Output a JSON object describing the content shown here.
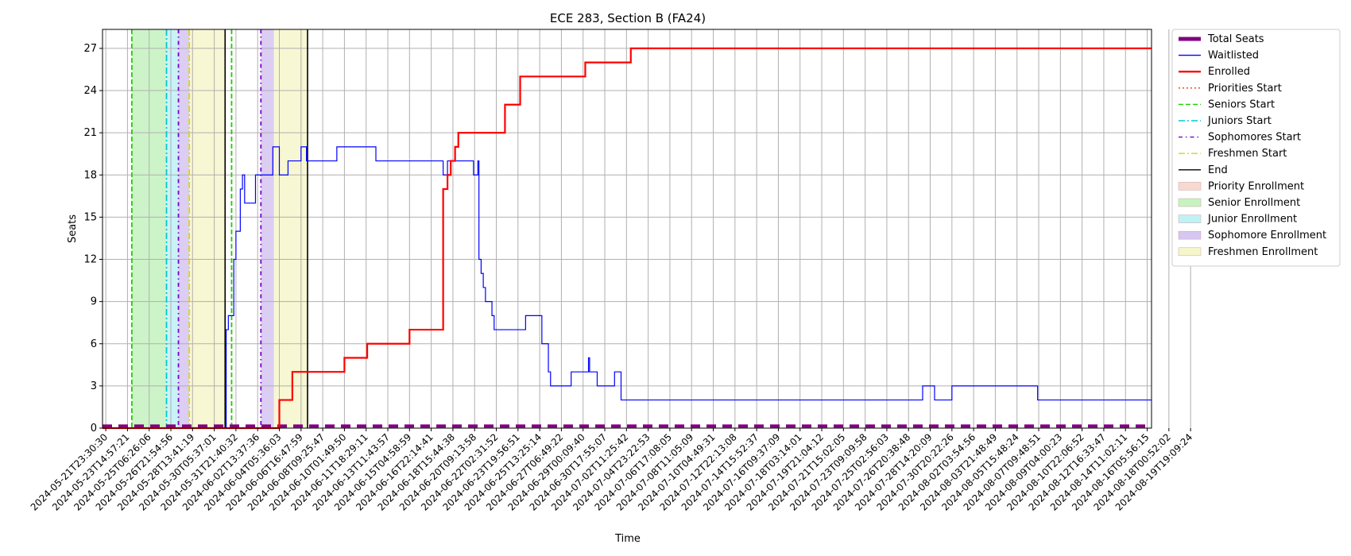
{
  "chart_data": {
    "type": "line",
    "title": "ECE 283, Section B (FA24)",
    "xlabel": "Time",
    "ylabel": "Seats",
    "ylim": [
      0,
      28.35
    ],
    "yticks": [
      0,
      3,
      6,
      9,
      12,
      15,
      18,
      21,
      24,
      27
    ],
    "xlim": [
      -0.15,
      48.2
    ],
    "grid": true,
    "legend_position": "outside-right",
    "x_tick_labels": [
      "2024-05-21T23:30:30",
      "2024-05-23T14:57:21",
      "2024-05-25T06:26:06",
      "2024-05-26T21:54:56",
      "2024-05-28T13:41:19",
      "2024-05-30T05:37:01",
      "2024-05-31T21:40:32",
      "2024-06-02T13:37:36",
      "2024-06-04T05:36:03",
      "2024-06-06T16:47:59",
      "2024-06-08T09:25:47",
      "2024-06-10T01:49:50",
      "2024-06-11T18:29:11",
      "2024-06-13T11:43:57",
      "2024-06-15T04:58:59",
      "2024-06-16T22:14:41",
      "2024-06-18T15:44:38",
      "2024-06-20T09:13:58",
      "2024-06-22T02:31:52",
      "2024-06-23T19:56:51",
      "2024-06-25T13:25:14",
      "2024-06-27T06:49:22",
      "2024-06-29T00:09:40",
      "2024-06-30T17:55:07",
      "2024-07-02T11:25:42",
      "2024-07-04T23:22:53",
      "2024-07-06T17:08:05",
      "2024-07-08T11:05:09",
      "2024-07-10T04:49:31",
      "2024-07-12T22:13:08",
      "2024-07-14T15:52:37",
      "2024-07-16T09:37:09",
      "2024-07-18T03:14:01",
      "2024-07-19T21:04:12",
      "2024-07-21T15:02:05",
      "2024-07-23T09:09:58",
      "2024-07-25T02:56:03",
      "2024-07-26T20:38:48",
      "2024-07-28T14:20:09",
      "2024-07-30T20:22:26",
      "2024-08-02T03:54:56",
      "2024-08-03T21:48:49",
      "2024-08-05T15:48:24",
      "2024-08-07T09:48:51",
      "2024-08-09T04:00:23",
      "2024-08-10T22:06:52",
      "2024-08-12T16:33:47",
      "2024-08-14T11:02:11",
      "2024-08-16T05:56:15",
      "2024-08-18T00:52:02",
      "2024-08-19T19:09:24"
    ],
    "series": [
      {
        "name": "Total Seats",
        "color": "#800080",
        "style": "dashed-thick",
        "points": [
          [
            -0.15,
            0.15
          ],
          [
            48.2,
            0.15
          ]
        ]
      },
      {
        "name": "Waitlisted",
        "color": "#0000ff",
        "style": "step",
        "points": [
          [
            -0.15,
            0
          ],
          [
            5.5,
            0
          ],
          [
            5.55,
            7
          ],
          [
            5.65,
            8
          ],
          [
            5.8,
            8
          ],
          [
            5.9,
            12
          ],
          [
            6.0,
            14
          ],
          [
            6.2,
            17
          ],
          [
            6.3,
            18
          ],
          [
            6.4,
            16
          ],
          [
            6.7,
            16
          ],
          [
            6.9,
            18
          ],
          [
            7.6,
            18
          ],
          [
            7.7,
            20
          ],
          [
            7.9,
            20
          ],
          [
            8.0,
            18
          ],
          [
            8.35,
            18
          ],
          [
            8.4,
            19
          ],
          [
            8.95,
            19
          ],
          [
            9.0,
            20
          ],
          [
            9.2,
            20
          ],
          [
            9.25,
            19
          ],
          [
            10.6,
            19
          ],
          [
            10.65,
            20
          ],
          [
            12.4,
            20
          ],
          [
            12.45,
            19
          ],
          [
            15.5,
            19
          ],
          [
            15.55,
            18
          ],
          [
            15.7,
            18
          ],
          [
            15.75,
            19
          ],
          [
            16.9,
            19
          ],
          [
            16.95,
            18
          ],
          [
            17.1,
            18
          ],
          [
            17.15,
            19
          ],
          [
            17.2,
            12
          ],
          [
            17.3,
            11
          ],
          [
            17.4,
            10
          ],
          [
            17.5,
            9
          ],
          [
            17.7,
            9
          ],
          [
            17.8,
            8
          ],
          [
            17.9,
            7
          ],
          [
            19.3,
            7
          ],
          [
            19.35,
            8
          ],
          [
            20.05,
            8
          ],
          [
            20.1,
            6
          ],
          [
            20.3,
            6
          ],
          [
            20.4,
            4
          ],
          [
            20.5,
            3
          ],
          [
            21.4,
            3
          ],
          [
            21.45,
            4
          ],
          [
            22.2,
            4
          ],
          [
            22.25,
            5
          ],
          [
            22.3,
            4
          ],
          [
            22.6,
            4
          ],
          [
            22.65,
            3
          ],
          [
            23.4,
            3
          ],
          [
            23.45,
            4
          ],
          [
            23.7,
            4
          ],
          [
            23.75,
            2
          ],
          [
            37.6,
            2
          ],
          [
            37.65,
            3
          ],
          [
            38.15,
            3
          ],
          [
            38.2,
            2
          ],
          [
            38.95,
            2
          ],
          [
            39.0,
            3
          ],
          [
            42.9,
            3
          ],
          [
            42.95,
            2
          ],
          [
            48.2,
            2
          ]
        ]
      },
      {
        "name": "Enrolled",
        "color": "#ff0000",
        "style": "step-thick",
        "points": [
          [
            -0.15,
            0
          ],
          [
            7.95,
            0
          ],
          [
            8.0,
            2
          ],
          [
            8.55,
            2
          ],
          [
            8.6,
            4
          ],
          [
            10.95,
            4
          ],
          [
            11.0,
            5
          ],
          [
            12.0,
            5
          ],
          [
            12.05,
            6
          ],
          [
            13.95,
            6
          ],
          [
            14.0,
            7
          ],
          [
            15.5,
            7
          ],
          [
            15.55,
            17
          ],
          [
            15.7,
            17
          ],
          [
            15.75,
            18
          ],
          [
            15.85,
            18
          ],
          [
            15.9,
            19
          ],
          [
            16.05,
            19
          ],
          [
            16.1,
            20
          ],
          [
            16.2,
            20
          ],
          [
            16.25,
            21
          ],
          [
            18.35,
            21
          ],
          [
            18.4,
            23
          ],
          [
            19.05,
            23
          ],
          [
            19.1,
            25
          ],
          [
            22.05,
            25
          ],
          [
            22.1,
            26
          ],
          [
            24.15,
            26
          ],
          [
            24.2,
            27
          ],
          [
            48.2,
            27
          ]
        ]
      }
    ],
    "markers": [
      {
        "name": "Seniors Start",
        "color": "#22cc00",
        "style": "dashed",
        "x": 1.2
      },
      {
        "name": "Seniors Start",
        "color": "#22cc00",
        "style": "dashed",
        "x": 5.8
      },
      {
        "name": "Juniors Start",
        "color": "#00c8d8",
        "style": "dashdot",
        "x": 2.8
      },
      {
        "name": "Sophomores Start",
        "color": "#7a00cc",
        "style": "dotted-dash",
        "x": 3.35
      },
      {
        "name": "Sophomores Start",
        "color": "#7a00cc",
        "style": "dotted-dash",
        "x": 7.15
      },
      {
        "name": "Freshmen Start",
        "color": "#d8d800",
        "style": "dashdot",
        "x": 3.85
      },
      {
        "name": "End",
        "color": "#000000",
        "style": "solid",
        "x": 5.5
      },
      {
        "name": "End",
        "color": "#000000",
        "style": "solid",
        "x": 9.3
      }
    ],
    "spans": [
      {
        "name": "Senior Enrollment",
        "color": "#b8f0b0",
        "x0": 1.2,
        "x1": 2.8
      },
      {
        "name": "Junior Enrollment",
        "color": "#b0eef4",
        "x0": 2.8,
        "x1": 3.35
      },
      {
        "name": "Sophomore Enrollment",
        "color": "#cdb8ee",
        "x0": 3.35,
        "x1": 3.85
      },
      {
        "name": "Freshmen Enrollment",
        "color": "#f4f4c0",
        "x0": 3.85,
        "x1": 5.5
      },
      {
        "name": "Sophomore Enrollment",
        "color": "#cdb8ee",
        "x0": 7.15,
        "x1": 7.75
      },
      {
        "name": "Freshmen Enrollment",
        "color": "#f4f4c0",
        "x0": 7.75,
        "x1": 9.3
      }
    ],
    "legend": [
      {
        "label": "Total Seats",
        "kind": "line",
        "color": "#800080",
        "style": "thick"
      },
      {
        "label": "Waitlisted",
        "kind": "line",
        "color": "#0000ff",
        "style": "solid"
      },
      {
        "label": "Enrolled",
        "kind": "line",
        "color": "#ff0000",
        "style": "thick"
      },
      {
        "label": "Priorities Start",
        "kind": "line",
        "color": "#ff3300",
        "style": "dotted"
      },
      {
        "label": "Seniors Start",
        "kind": "line",
        "color": "#22cc00",
        "style": "dashed"
      },
      {
        "label": "Juniors Start",
        "kind": "line",
        "color": "#00c8d8",
        "style": "dashdot"
      },
      {
        "label": "Sophomores Start",
        "kind": "line",
        "color": "#7a00cc",
        "style": "dotted-dash"
      },
      {
        "label": "Freshmen Start",
        "kind": "line",
        "color": "#d8d800",
        "style": "dashdot"
      },
      {
        "label": "End",
        "kind": "line",
        "color": "#000000",
        "style": "solid"
      },
      {
        "label": "Priority Enrollment",
        "kind": "patch",
        "color": "#f6d0c4"
      },
      {
        "label": "Senior Enrollment",
        "kind": "patch",
        "color": "#b8f0b0"
      },
      {
        "label": "Junior Enrollment",
        "kind": "patch",
        "color": "#b0eef4"
      },
      {
        "label": "Sophomore Enrollment",
        "kind": "patch",
        "color": "#cdb8ee"
      },
      {
        "label": "Freshmen Enrollment",
        "kind": "patch",
        "color": "#f4f4c0"
      }
    ]
  }
}
